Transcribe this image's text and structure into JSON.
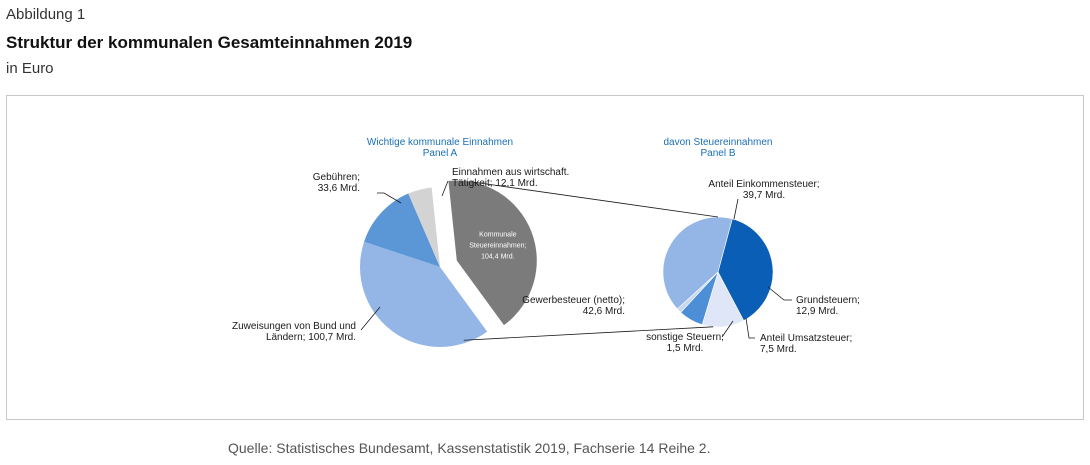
{
  "figure": {
    "label": "Abbildung 1",
    "title": "Struktur der kommunalen Gesamteinnahmen 2019",
    "unit": "in Euro",
    "source": "Quelle: Statistisches Bundesamt, Kassenstatistik 2019, Fachserie 14 Reihe 2."
  },
  "chart_data": [
    {
      "type": "pie",
      "title": "Wichtige kommunale Einnahmen",
      "subtitle": "Panel A",
      "unit": "Mrd. Euro",
      "slices": [
        {
          "name": "Gebühren",
          "value": 33.6,
          "label_lines": [
            "Gebühren;",
            "33,6 Mrd."
          ],
          "color": "#5b96d6"
        },
        {
          "name": "Zuweisungen von Bund und Ländern",
          "value": 100.7,
          "label_lines": [
            "Zuweisungen von Bund und",
            "Ländern; 100,7 Mrd."
          ],
          "color": "#94b6e6"
        },
        {
          "name": "Kommunale Steuereinnahmen",
          "value": 104.4,
          "label_lines": [
            "Kommunale",
            "Steuereinnahmen;",
            "104,4 Mrd."
          ],
          "color": "#7b7b7b",
          "exploded": true
        },
        {
          "name": "Einnahmen aus wirtschaft. Tätigkeit",
          "value": 12.1,
          "label_lines": [
            "Einnahmen aus wirtschaft.",
            "Tätigkeit; 12,1 Mrd."
          ],
          "color": "#d3d3d3"
        }
      ]
    },
    {
      "type": "pie",
      "title": "davon Steuereinnahmen",
      "subtitle": "Panel B",
      "unit": "Mrd. Euro",
      "slices": [
        {
          "name": "Anteil Einkommensteuer",
          "value": 39.7,
          "label_lines": [
            "Anteil Einkommensteuer;",
            "39,7 Mrd."
          ],
          "color": "#0a5eb6"
        },
        {
          "name": "Grundsteuern",
          "value": 12.9,
          "label_lines": [
            "Grundsteuern;",
            "12,9 Mrd."
          ],
          "color": "#dfe6f7"
        },
        {
          "name": "Anteil Umsatzsteuer",
          "value": 7.5,
          "label_lines": [
            "Anteil Umsatzsteuer;",
            "7,5 Mrd."
          ],
          "color": "#4c8fd6"
        },
        {
          "name": "sonstige Steuern",
          "value": 1.5,
          "label_lines": [
            "sonstige Steuern;",
            "1,5 Mrd."
          ],
          "color": "#c9d8ee"
        },
        {
          "name": "Gewerbesteuer (netto)",
          "value": 42.6,
          "label_lines": [
            "Gewerbesteuer (netto);",
            "42,6 Mrd."
          ],
          "color": "#94b6e6"
        }
      ]
    }
  ]
}
